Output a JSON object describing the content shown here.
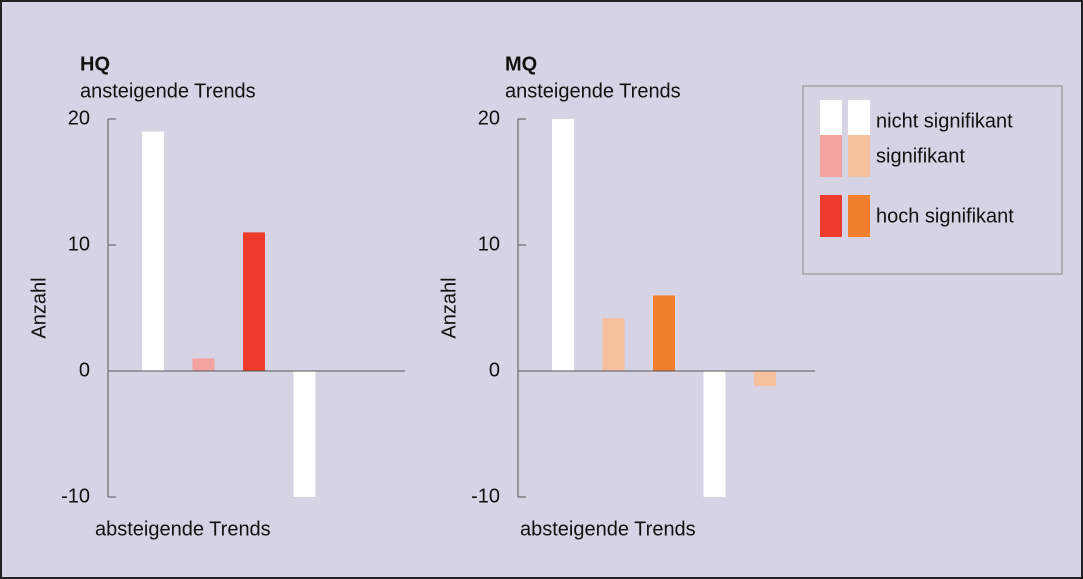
{
  "chart_data": [
    {
      "type": "bar",
      "title": "HQ",
      "subtitle": "ansteigende Trends",
      "annotation": "absteigende Trends",
      "y_label": "Anzahl",
      "categories": [
        null,
        null,
        null,
        null,
        null,
        null
      ],
      "values": [
        19,
        1,
        11,
        -10,
        0,
        0
      ],
      "colors": [
        "#ffffff",
        "#f4a3a0",
        "#ee3b2b",
        "#ffffff",
        "#f4a3a0",
        "#ee3b2b"
      ],
      "ylim": [
        -10,
        20
      ],
      "yticks": [
        -10,
        0,
        10,
        20
      ]
    },
    {
      "type": "bar",
      "title": "MQ",
      "subtitle": "ansteigende Trends",
      "annotation": "absteigende Trends",
      "y_label": "Anzahl",
      "categories": [
        null,
        null,
        null,
        null,
        null,
        null
      ],
      "values": [
        20,
        4.2,
        6,
        -10,
        -1.2,
        0
      ],
      "colors": [
        "#ffffff",
        "#f6c09e",
        "#f07e2c",
        "#ffffff",
        "#f6c09e",
        "#f07e2c"
      ],
      "ylim": [
        -10,
        20
      ],
      "yticks": [
        -10,
        0,
        10,
        20
      ]
    }
  ],
  "legend": {
    "position": "upper right",
    "entries": [
      {
        "label": "nicht signifikant",
        "colors": [
          "#ffffff",
          "#ffffff"
        ]
      },
      {
        "label": "signifikant",
        "colors": [
          "#f4a3a0",
          "#f6c09e"
        ]
      },
      {
        "label": "hoch signifikant",
        "colors": [
          "#ee3b2b",
          "#f07e2c"
        ]
      }
    ]
  }
}
